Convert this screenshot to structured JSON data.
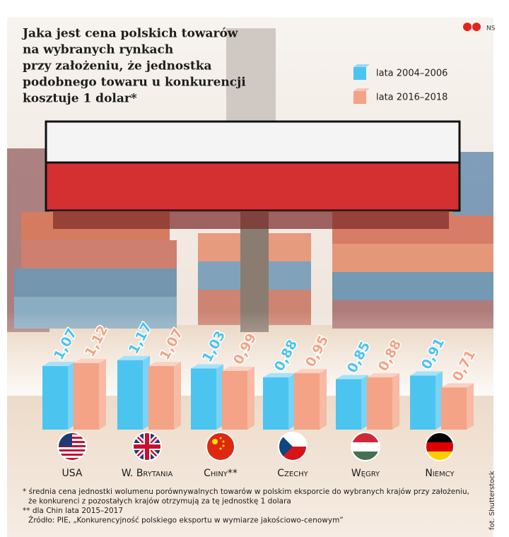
{
  "chart_data": {
    "type": "bar3d",
    "title": [
      "Jaka jest cena polskich towarów",
      "na wybranych rynkach",
      "przy założeniu, że jednostka",
      "podobnego towaru u konkurencji",
      "kosztuje 1 dolar*"
    ],
    "categories": [
      "USA",
      "W. Brytania",
      "Chiny**",
      "Czechy",
      "Węgry",
      "Niemcy"
    ],
    "series": [
      {
        "name": "lata 2004–2006",
        "color": "#4cc4f0",
        "values": [
          1.07,
          1.17,
          1.03,
          0.88,
          0.85,
          0.91
        ],
        "value_labels": [
          "1,07",
          "1,17",
          "1,03",
          "0,88",
          "0,85",
          "0,91"
        ]
      },
      {
        "name": "lata 2016–2018",
        "color": "#f4a386",
        "values": [
          1.12,
          1.07,
          0.99,
          0.95,
          0.88,
          0.71
        ],
        "value_labels": [
          "1,12",
          "1,07",
          "0,99",
          "0,95",
          "0,88",
          "0,71"
        ]
      }
    ],
    "footnotes": [
      "* średnia cena jednostki wolumenu porównywalnych towarów w polskim eksporcie do wybranych krajów przy założeniu,",
      "że konkurenci z pozostałych krajów otrzymują za tę jednostkę 1 dolara",
      "** dla Chin lata 2015–2017",
      "Źródło: PIE, „Konkurencyjność polskiego eksportu w wymiarze jakościowo-cenowym”"
    ],
    "logo": "NS",
    "photo_credit": "fot. Shutterstock"
  }
}
